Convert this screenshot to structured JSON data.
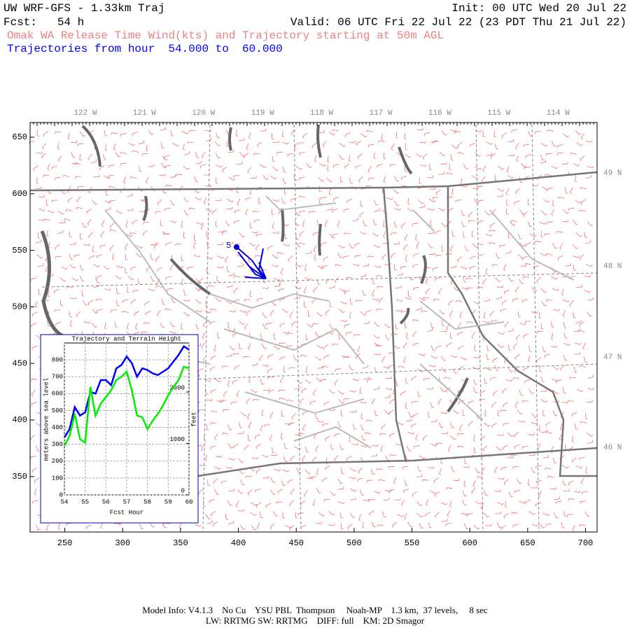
{
  "header": {
    "model": "UW WRF-GFS - 1.33km Traj",
    "init": "Init: 00 UTC Wed 20 Jul 22",
    "fcst": "Fcst:   54 h",
    "valid": "Valid: 06 UTC Fri 22 Jul 22 (23 PDT Thu 21 Jul 22)",
    "subtitle": "Omak WA Release Time Wind(kts) and Trajectory starting at 50m AGL",
    "trajectories": "Trajectories from hour  54.000 to  60.000"
  },
  "map": {
    "xlim": [
      220,
      710
    ],
    "ylim": [
      301,
      663
    ],
    "xticks": [
      250,
      300,
      350,
      400,
      450,
      500,
      550,
      600,
      650,
      700
    ],
    "yticks": [
      350,
      400,
      450,
      500,
      550,
      600,
      650
    ],
    "lon_labels": [
      "122 W",
      "121 W",
      "120 W",
      "119 W",
      "118 W",
      "117 W",
      "116 W",
      "115 W",
      "114 W"
    ],
    "lat_labels": [
      "49 N",
      "48 N",
      "47 N",
      "46 N"
    ],
    "trajectory_label": "5"
  },
  "chart_data": {
    "type": "line",
    "title": "Trajectory and Terrain Height",
    "xlabel": "Fcst Hour",
    "ylabel": "meters above sea level",
    "y2label": "feet",
    "xlim": [
      54,
      60
    ],
    "xticks": [
      54,
      55,
      56,
      57,
      58,
      59,
      60
    ],
    "ylim": [
      0,
      900
    ],
    "yticks": [
      0,
      100,
      200,
      300,
      400,
      500,
      600,
      700,
      800
    ],
    "y2lim": [
      0,
      2953
    ],
    "y2ticks": [
      0,
      1000,
      2000
    ],
    "grid": true,
    "x": [
      54,
      54.25,
      54.5,
      54.75,
      55,
      55.25,
      55.5,
      55.75,
      56,
      56.25,
      56.5,
      56.75,
      57,
      57.25,
      57.5,
      57.75,
      58,
      58.25,
      58.5,
      58.75,
      59,
      59.25,
      59.5,
      59.75,
      60
    ],
    "series": [
      {
        "color": "#0000ff",
        "values": [
          340,
          390,
          520,
          470,
          490,
          610,
          600,
          680,
          680,
          650,
          750,
          770,
          820,
          780,
          700,
          750,
          740,
          720,
          710,
          730,
          750,
          790,
          830,
          880,
          860
        ]
      },
      {
        "color": "#00ee00",
        "values": [
          290,
          350,
          480,
          330,
          310,
          640,
          470,
          540,
          580,
          620,
          680,
          700,
          730,
          620,
          470,
          460,
          390,
          440,
          480,
          530,
          590,
          640,
          680,
          760,
          750
        ]
      }
    ]
  },
  "footer": {
    "line1": "Model Info: V4.1.3    No Cu    YSU PBL  Thompson     Noah-MP    1.3 km,  37 levels,     8 sec",
    "line2": "LW: RRTMG SW: RRTMG    DIFF: full    KM: 2D Smagor"
  }
}
